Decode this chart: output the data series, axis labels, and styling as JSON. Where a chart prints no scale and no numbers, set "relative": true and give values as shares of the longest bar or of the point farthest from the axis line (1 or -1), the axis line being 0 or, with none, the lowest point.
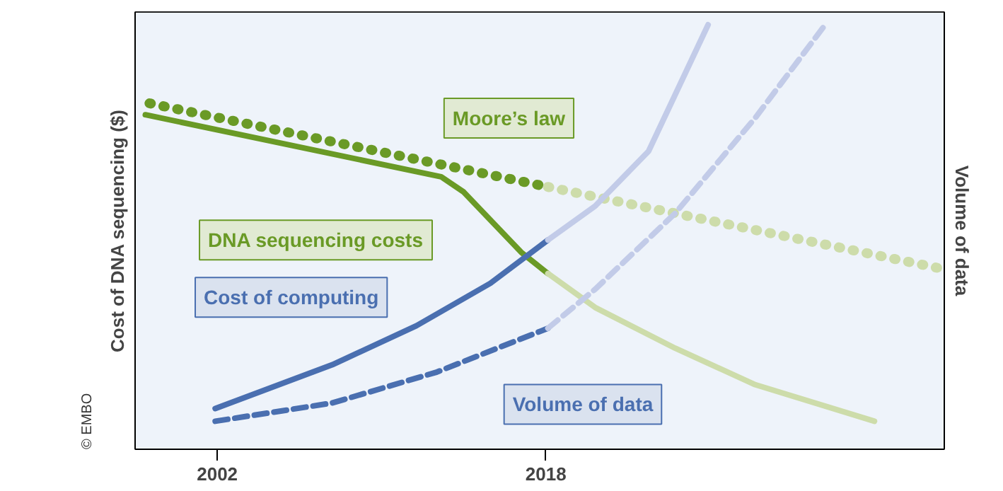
{
  "chart_data": {
    "type": "line",
    "relative": true,
    "ylabel": "Cost of DNA sequencing ($)",
    "y2label": "Volume of data",
    "xlim": [
      1998,
      2037.4
    ],
    "xticks": [
      2002,
      2018
    ],
    "grid": false,
    "annotations": [
      "© EMBO"
    ],
    "series": [
      {
        "name": "Moore’s law",
        "color": "#6a9a26",
        "line_style": "dotted",
        "x": [
          1998.7,
          2018.1
        ],
        "values": [
          0.815,
          0.618
        ]
      },
      {
        "color": "#cddcaa",
        "line_style": "dotted",
        "x": [
          2018.1,
          2037.1
        ],
        "values": [
          0.618,
          0.427
        ]
      },
      {
        "name": "DNA sequencing costs",
        "color": "#6a9a26",
        "line_style": "solid",
        "x": [
          1998.5,
          2012.9,
          2014.0,
          2016.8,
          2018.1
        ],
        "values": [
          0.788,
          0.642,
          0.606,
          0.464,
          0.414
        ]
      },
      {
        "color": "#cddcaa",
        "line_style": "solid",
        "x": [
          2018.1,
          2020.4,
          2024.3,
          2028.2,
          2034.0
        ],
        "values": [
          0.414,
          0.334,
          0.238,
          0.152,
          0.066
        ]
      },
      {
        "name": "Cost of computing",
        "color": "#4a6fb0",
        "line_style": "solid",
        "x": [
          2001.9,
          2007.6,
          2011.7,
          2015.3,
          2018.1
        ],
        "values": [
          0.096,
          0.199,
          0.291,
          0.391,
          0.493
        ]
      },
      {
        "color": "#c2cbe8",
        "line_style": "solid",
        "x": [
          2018.1,
          2020.4,
          2023.0,
          2025.9
        ],
        "values": [
          0.493,
          0.573,
          0.702,
          1.0
        ]
      },
      {
        "name": "Volume of data",
        "color": "#4a6fb0",
        "line_style": "dashed",
        "x": [
          2001.9,
          2007.6,
          2012.7,
          2018.1
        ],
        "values": [
          0.066,
          0.109,
          0.182,
          0.285
        ]
      },
      {
        "color": "#c2cbe8",
        "line_style": "dashed",
        "x": [
          2018.1,
          2020.4,
          2024.3,
          2028.2,
          2031.6
        ],
        "values": [
          0.285,
          0.377,
          0.556,
          0.781,
          1.0
        ]
      }
    ]
  }
}
